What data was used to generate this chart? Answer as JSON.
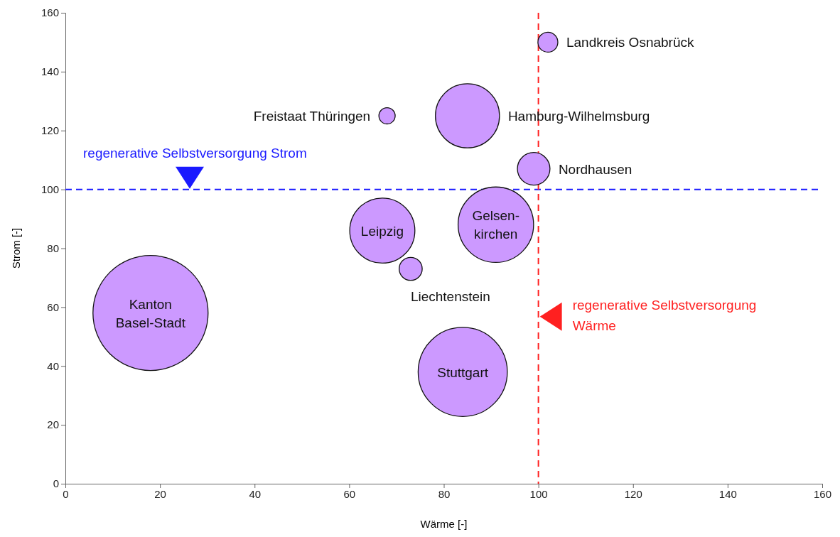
{
  "chart_data": {
    "type": "bubble",
    "xlabel": "Wärme [-]",
    "ylabel": "Strom [-]",
    "x": [
      102,
      68,
      85,
      99,
      67,
      91,
      73,
      18,
      84
    ],
    "values": [
      150,
      125,
      125,
      107,
      86,
      88,
      73,
      58,
      38
    ],
    "sizes": [
      0.03,
      0.02,
      0.31,
      0.08,
      0.32,
      0.43,
      0.04,
      1,
      0.6
    ],
    "color": "#cc99ff",
    "xlim": [
      0,
      160
    ],
    "ylim": [
      0,
      160
    ],
    "xticks": [
      0,
      20,
      40,
      60,
      80,
      100,
      120,
      140,
      160
    ],
    "yticks": [
      0,
      20,
      40,
      60,
      80,
      100,
      120,
      140,
      160
    ],
    "annotations": [
      {
        "text": "Landkreis Osnabrück",
        "x": 102,
        "y": 150
      },
      {
        "text": "Freistaat Thüringen",
        "x": 68,
        "y": 125
      },
      {
        "text": "Hamburg-Wilhelmsburg",
        "x": 85,
        "y": 125
      },
      {
        "text": "Nordhausen",
        "x": 99,
        "y": 107
      },
      {
        "text": "Leipzig",
        "x": 67,
        "y": 86
      },
      {
        "text": "Gelsen-\nkirchen",
        "x": 91,
        "y": 88
      },
      {
        "text": "Liechtenstein",
        "x": 73,
        "y": 73
      },
      {
        "text": "Kanton\nBasel-Stadt",
        "x": 18,
        "y": 58
      },
      {
        "text": "Stuttgart",
        "x": 84,
        "y": 38
      }
    ],
    "ref_lines": [
      {
        "axis": "y",
        "value": 100,
        "label": "regenerative Selbstversorgung Strom",
        "color": "#1a1aff",
        "line_style": "dashed"
      },
      {
        "axis": "x",
        "value": 100,
        "label": "regenerative Selbstversorgung\nWärme",
        "color": "#ff2020",
        "line_style": "dashed"
      }
    ]
  }
}
